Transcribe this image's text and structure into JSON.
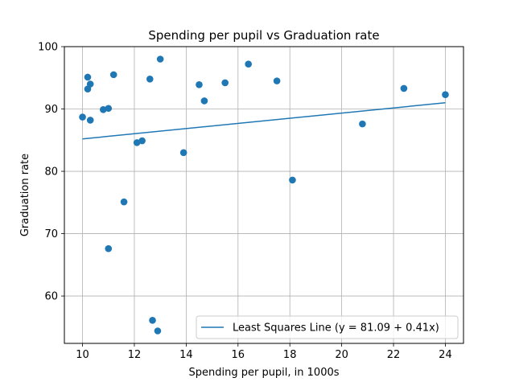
{
  "chart_data": {
    "type": "scatter",
    "title": "Spending per pupil vs Graduation rate",
    "xlabel": "Spending per pupil, in 1000s",
    "ylabel": "Graduation rate",
    "xlim": [
      9.3,
      24.7
    ],
    "ylim": [
      52.4,
      100
    ],
    "xticks": [
      10,
      12,
      14,
      16,
      18,
      20,
      22,
      24
    ],
    "yticks": [
      60,
      70,
      80,
      90,
      100
    ],
    "grid": true,
    "legend_position": "lower right",
    "marker_color": "#1f77b4",
    "line_color": "#1f77b4",
    "points": [
      {
        "x": 10.0,
        "y": 88.7
      },
      {
        "x": 10.2,
        "y": 95.1
      },
      {
        "x": 10.2,
        "y": 93.2
      },
      {
        "x": 10.3,
        "y": 94.0
      },
      {
        "x": 10.3,
        "y": 88.2
      },
      {
        "x": 10.8,
        "y": 89.9
      },
      {
        "x": 11.0,
        "y": 90.1
      },
      {
        "x": 11.0,
        "y": 67.6
      },
      {
        "x": 11.2,
        "y": 95.5
      },
      {
        "x": 11.6,
        "y": 75.1
      },
      {
        "x": 12.1,
        "y": 84.6
      },
      {
        "x": 12.3,
        "y": 84.9
      },
      {
        "x": 12.6,
        "y": 94.8
      },
      {
        "x": 12.7,
        "y": 56.1
      },
      {
        "x": 12.9,
        "y": 54.4
      },
      {
        "x": 13.0,
        "y": 98.0
      },
      {
        "x": 13.9,
        "y": 83.0
      },
      {
        "x": 14.5,
        "y": 93.9
      },
      {
        "x": 14.7,
        "y": 91.3
      },
      {
        "x": 15.5,
        "y": 94.2
      },
      {
        "x": 16.4,
        "y": 97.2
      },
      {
        "x": 17.5,
        "y": 94.5
      },
      {
        "x": 18.1,
        "y": 78.6
      },
      {
        "x": 20.8,
        "y": 87.6
      },
      {
        "x": 22.4,
        "y": 93.3
      },
      {
        "x": 24.0,
        "y": 92.3
      }
    ],
    "fit_line": {
      "name": "Least Squares Line (y = 81.09 + 0.41x)",
      "x": [
        10,
        24
      ],
      "y": [
        85.2,
        91.0
      ]
    }
  }
}
